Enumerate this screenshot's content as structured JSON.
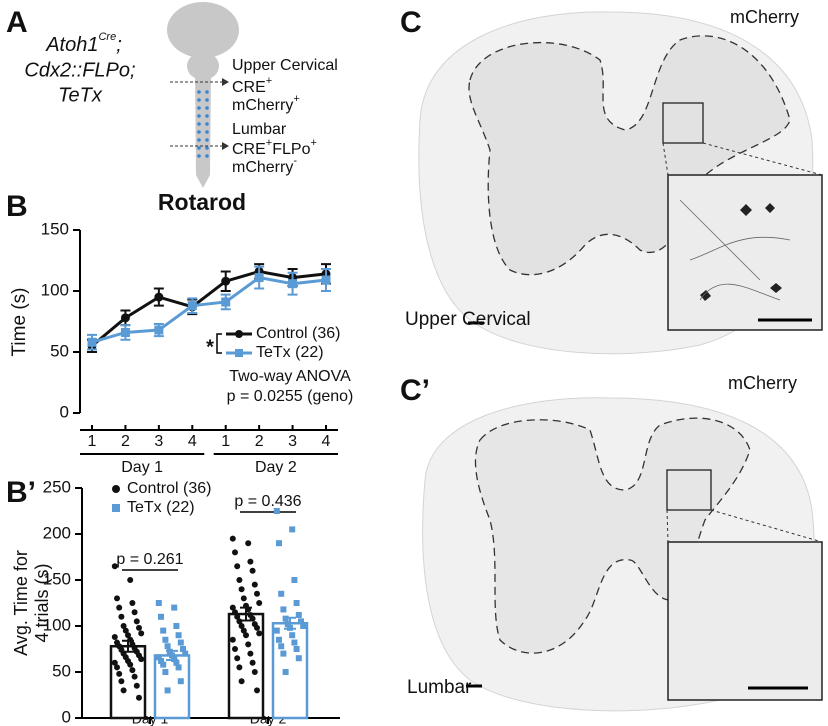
{
  "panels": {
    "a": "A",
    "b": "B",
    "b2": "B’",
    "c": "C",
    "c2": "C’"
  },
  "schematic": {
    "genotype": [
      [
        "Atoh1",
        "Cre",
        ";"
      ],
      [
        "Cdx2::FLPo;"
      ],
      [
        "TeTx"
      ]
    ],
    "upper": {
      "region": "Upper Cervical",
      "line1": [
        "CRE",
        "+"
      ],
      "line2": [
        "mCherry",
        "+"
      ]
    },
    "lumbar": {
      "region": "Lumbar",
      "line1": [
        "CRE",
        "+",
        "FLPo",
        "+"
      ],
      "line2": [
        "mCherry",
        "-"
      ]
    }
  },
  "images": [
    {
      "label": "mCherry",
      "region": "Upper Cervical"
    },
    {
      "label": "mCherry",
      "region": "Lumbar"
    }
  ],
  "chart_data": [
    {
      "type": "line",
      "title": "Rotarod",
      "ylabel": "Time (s)",
      "categories": [
        "1",
        "2",
        "3",
        "4",
        "1",
        "2",
        "3",
        "4"
      ],
      "groups": [
        "Day 1",
        "Day 2"
      ],
      "ylim": [
        0,
        150
      ],
      "yticks": [
        0,
        50,
        100,
        150
      ],
      "series": [
        {
          "name": "Control (36)",
          "color": "#111111",
          "marker": "circle",
          "values": [
            55,
            78,
            95,
            87,
            108,
            116,
            111,
            114
          ],
          "errors": [
            5,
            6,
            7,
            6,
            8,
            6,
            7,
            8
          ]
        },
        {
          "name": "TeTx (22)",
          "color": "#5b9bd5",
          "marker": "square",
          "values": [
            58,
            66,
            68,
            88,
            91,
            111,
            106,
            109
          ],
          "errors": [
            6,
            6,
            5,
            6,
            6,
            9,
            9,
            9
          ]
        }
      ],
      "significance": "*",
      "annotations": [
        "Two-way ANOVA",
        "p = 0.0255 (geno)"
      ]
    },
    {
      "type": "bar",
      "ylabel": [
        "Avg. Time for",
        "4 trials (s)"
      ],
      "categories": [
        "Day 1",
        "Day 2"
      ],
      "ylim": [
        0,
        250
      ],
      "yticks": [
        0,
        50,
        100,
        150,
        200,
        250
      ],
      "series": [
        {
          "name": "Control (36)",
          "color": "#111111",
          "marker": "circle",
          "values": [
            78,
            113
          ],
          "errors": [
            6,
            7
          ],
          "points": [
            [
              165,
              150,
              130,
              125,
              120,
              115,
              110,
              105,
              100,
              98,
              95,
              92,
              90,
              88,
              85,
              82,
              80,
              78,
              76,
              74,
              72,
              70,
              68,
              66,
              64,
              62,
              60,
              58,
              55,
              52,
              48,
              45,
              40,
              35,
              30,
              22
            ],
            [
              195,
              190,
              180,
              170,
              165,
              160,
              150,
              145,
              140,
              135,
              130,
              125,
              122,
              120,
              118,
              115,
              112,
              110,
              108,
              105,
              102,
              100,
              98,
              95,
              92,
              90,
              85,
              80,
              75,
              70,
              65,
              60,
              55,
              50,
              40,
              30
            ]
          ]
        },
        {
          "name": "TeTx (22)",
          "color": "#5b9bd5",
          "marker": "square",
          "values": [
            68,
            103
          ],
          "errors": [
            5,
            6
          ],
          "points": [
            [
              125,
              120,
              110,
              100,
              95,
              90,
              85,
              82,
              78,
              75,
              72,
              70,
              68,
              66,
              64,
              62,
              60,
              58,
              55,
              50,
              40,
              30
            ],
            [
              225,
              205,
              190,
              150,
              135,
              125,
              118,
              112,
              108,
              105,
              102,
              100,
              98,
              95,
              90,
              85,
              82,
              78,
              75,
              70,
              65,
              50
            ]
          ]
        }
      ],
      "comparisons": [
        "p = 0.261",
        "p = 0.436"
      ]
    }
  ]
}
